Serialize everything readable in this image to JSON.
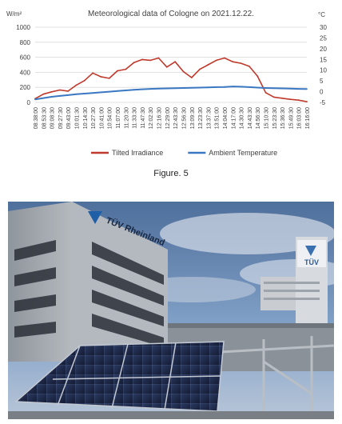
{
  "figure_caption": "Figure. 5",
  "photo": {
    "description": "TÜV Rheinland building with solar panel test array in front",
    "signage_text": "TÜV Rheinland",
    "tower_sign_text": "TÜV",
    "sky_color": "#6e8fb6",
    "panel_color": "#1d2a4a"
  },
  "chart_data": {
    "type": "line",
    "title": "Meteorological data of Cologne on 2021.12.22.",
    "y_left_unit": "W/m²",
    "y_right_unit": "°C",
    "ylim_left": [
      0,
      1000
    ],
    "yticks_left": [
      "0",
      "200",
      "400",
      "600",
      "800",
      "1000"
    ],
    "ylim_right": [
      -5,
      30
    ],
    "yticks_right": [
      "-5",
      "0",
      "5",
      "10",
      "15",
      "20",
      "25",
      "30"
    ],
    "grid": true,
    "legend_position": "bottom",
    "x_tick_labels": [
      "08:38:00",
      "08:53:30",
      "09:08:30",
      "09:27:30",
      "09:43:00",
      "10:01:30",
      "10:14:30",
      "10:27:30",
      "10:41:00",
      "10:54:00",
      "11:07:00",
      "11:20:30",
      "11:33:30",
      "11:47:30",
      "12:02:30",
      "12:16:30",
      "12:29:00",
      "12:43:30",
      "12:56:30",
      "13:09:30",
      "13:23:30",
      "13:37:30",
      "13:51:00",
      "14:04:00",
      "14:17:00",
      "14:30:30",
      "14:43:30",
      "14:56:30",
      "15:10:30",
      "15:23:30",
      "15:36:30",
      "15:49:30",
      "16:03:00",
      "16:16:00"
    ],
    "series": [
      {
        "name": "Tilted Irradiance",
        "axis": "left",
        "color": "#c0392b",
        "values": [
          50,
          110,
          140,
          165,
          150,
          230,
          290,
          390,
          340,
          320,
          420,
          440,
          530,
          570,
          560,
          590,
          470,
          540,
          410,
          330,
          440,
          500,
          560,
          590,
          540,
          520,
          480,
          350,
          130,
          70,
          55,
          40,
          30,
          10
        ]
      },
      {
        "name": "Ambient Temperature",
        "axis": "right",
        "color": "#3a78c2",
        "values": [
          -3.6,
          -3.0,
          -2.4,
          -2.0,
          -1.6,
          -1.2,
          -0.9,
          -0.6,
          -0.3,
          0.0,
          0.3,
          0.6,
          0.9,
          1.1,
          1.3,
          1.4,
          1.5,
          1.6,
          1.7,
          1.8,
          1.9,
          2.0,
          2.1,
          2.2,
          2.4,
          2.3,
          2.1,
          1.9,
          1.7,
          1.6,
          1.5,
          1.4,
          1.3,
          1.2
        ]
      }
    ]
  }
}
